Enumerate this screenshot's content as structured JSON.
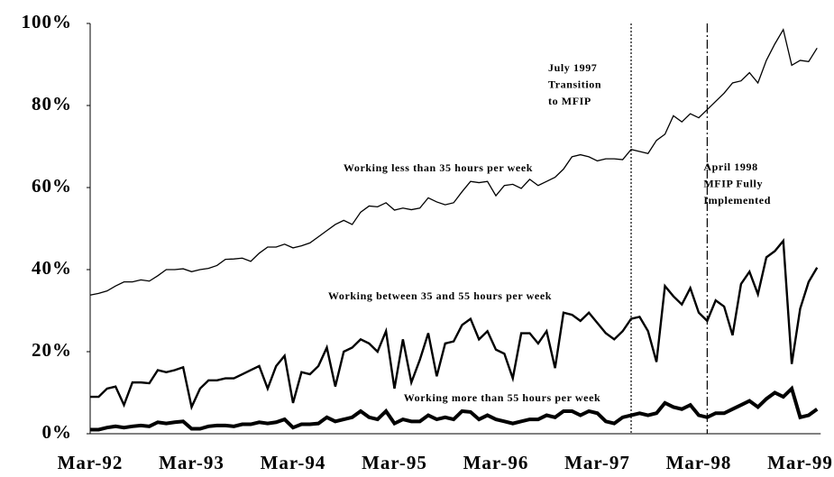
{
  "chart_data": {
    "type": "line",
    "categories": [
      "Mar-92",
      null,
      null,
      null,
      null,
      null,
      null,
      null,
      null,
      null,
      null,
      null,
      "Mar-93",
      null,
      null,
      null,
      null,
      null,
      null,
      null,
      null,
      null,
      null,
      null,
      "Mar-94",
      null,
      null,
      null,
      null,
      null,
      null,
      null,
      null,
      null,
      null,
      null,
      "Mar-95",
      null,
      null,
      null,
      null,
      null,
      null,
      null,
      null,
      null,
      null,
      null,
      "Mar-96",
      null,
      null,
      null,
      null,
      null,
      null,
      null,
      null,
      null,
      null,
      null,
      "Mar-97",
      null,
      null,
      null,
      null,
      null,
      null,
      null,
      null,
      null,
      null,
      null,
      "Mar-98",
      null,
      null,
      null,
      null,
      null,
      null,
      null,
      null,
      null,
      null,
      null,
      "Mar-99",
      null,
      null
    ],
    "ylim": [
      0,
      100
    ],
    "yticks": [
      {
        "value": 0,
        "label": "0%"
      },
      {
        "value": 20,
        "label": "20%"
      },
      {
        "value": 40,
        "label": "40%"
      },
      {
        "value": 60,
        "label": "60%"
      },
      {
        "value": 80,
        "label": "80%"
      },
      {
        "value": 100,
        "label": "100%"
      }
    ],
    "series": [
      {
        "name": "Working less than 35 hours per week",
        "color": "#000000",
        "values": [
          33.8,
          34.2,
          34.8,
          36,
          37,
          37,
          37.5,
          37.2,
          38.5,
          40,
          40,
          40.2,
          39.5,
          40,
          40.3,
          41,
          42.5,
          42.6,
          42.8,
          42,
          44,
          45.5,
          45.5,
          46.2,
          45.3,
          45.8,
          46.5,
          48,
          49.5,
          51,
          52,
          51,
          54,
          55.5,
          55.3,
          56.3,
          54.5,
          55,
          54.6,
          55,
          57.5,
          56.5,
          55.8,
          56.3,
          59,
          61.5,
          61.2,
          61.5,
          58,
          60.5,
          60.8,
          59.8,
          62,
          60.5,
          61.5,
          62.5,
          64.5,
          67.5,
          68,
          67.5,
          66.5,
          67,
          67,
          66.8,
          69.3,
          68.8,
          68.3,
          71.5,
          73,
          77.5,
          76,
          78,
          77,
          79,
          81,
          83,
          85.5,
          86,
          88,
          85.5,
          91,
          95,
          98.5,
          89.8,
          91,
          90.7,
          94
        ]
      },
      {
        "name": "Working between 35 and 55 hours per week",
        "color": "#000000",
        "values": [
          9,
          9,
          11,
          11.5,
          7,
          12.5,
          12.5,
          12.3,
          15.5,
          15,
          15.5,
          16.2,
          6.5,
          11,
          13,
          13,
          13.5,
          13.5,
          14.5,
          15.5,
          16.5,
          11,
          16.5,
          19,
          7.5,
          15,
          14.5,
          16.5,
          21,
          11.5,
          20,
          21,
          23,
          22,
          20,
          25,
          11,
          23,
          12.5,
          18,
          24.5,
          14,
          22,
          22.5,
          26.5,
          28,
          23,
          25,
          20.5,
          19.5,
          13.5,
          24.5,
          24.5,
          22,
          25,
          16,
          29.5,
          29,
          27.5,
          29.5,
          27,
          24.5,
          23,
          25,
          28,
          28.5,
          25,
          17.5,
          36,
          33.5,
          31.5,
          35.5,
          29.5,
          27.5,
          32.5,
          31,
          24,
          36.5,
          39.5,
          34,
          43,
          44.5,
          47,
          17,
          30.5,
          37,
          40.5
        ]
      },
      {
        "name": "Working more than 55 hours per week",
        "color": "#000000",
        "values": [
          1,
          1,
          1.5,
          1.8,
          1.5,
          1.8,
          2,
          1.8,
          2.8,
          2.5,
          2.8,
          3,
          1.2,
          1.2,
          1.8,
          2,
          2,
          1.8,
          2.3,
          2.3,
          2.8,
          2.5,
          2.8,
          3.5,
          1.5,
          2.3,
          2.3,
          2.5,
          4,
          3,
          3.5,
          4,
          5.5,
          4,
          3.5,
          5.5,
          2.5,
          3.5,
          3,
          3,
          4.5,
          3.5,
          4,
          3.5,
          5.5,
          5.3,
          3.5,
          4.5,
          3.5,
          3,
          2.5,
          3,
          3.5,
          3.5,
          4.5,
          4,
          5.5,
          5.5,
          4.5,
          5.5,
          5,
          3,
          2.5,
          4,
          4.5,
          5,
          4.5,
          5,
          7.5,
          6.5,
          6,
          7,
          4.5,
          4,
          5,
          5,
          6,
          7,
          8,
          6.5,
          8.5,
          10,
          9,
          11,
          4,
          4.5,
          6
        ]
      }
    ],
    "events": [
      {
        "at": 64,
        "label": [
          "July 1997",
          "Transition",
          "to MFIP"
        ]
      },
      {
        "at": 73,
        "label": [
          "April 1998",
          "MFIP Fully",
          "Implemented"
        ]
      }
    ]
  }
}
